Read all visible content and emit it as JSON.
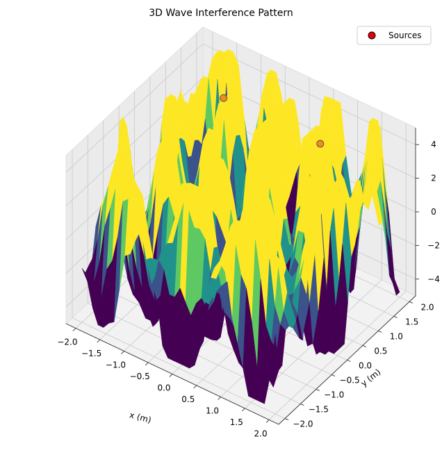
{
  "chart_data": {
    "type": "surface3d",
    "title": "3D Wave Interference Pattern",
    "xlabel": "x (m)",
    "ylabel": "y (m)",
    "zlabel": "",
    "xlim": [
      -2.2,
      2.2
    ],
    "ylim": [
      -2.2,
      2.2
    ],
    "zlim": [
      -5,
      5
    ],
    "x_ticks": [
      -2.0,
      -1.5,
      -1.0,
      -0.5,
      0.0,
      0.5,
      1.0,
      1.5,
      2.0
    ],
    "y_ticks": [
      -2.0,
      -1.5,
      -1.0,
      -0.5,
      0.0,
      0.5,
      1.0,
      1.5,
      2.0
    ],
    "z_ticks": [
      -4,
      -2,
      0,
      2,
      4
    ],
    "x_tick_labels": [
      "−2.0",
      "−1.5",
      "−1.0",
      "−0.5",
      "0.0",
      "0.5",
      "1.0",
      "1.5",
      "2.0"
    ],
    "y_tick_labels": [
      "−2.0",
      "−1.5",
      "−1.0",
      "−0.5",
      "0.0",
      "0.5",
      "1.0",
      "1.5",
      "2.0"
    ],
    "z_tick_labels": [
      "−4",
      "−2",
      "0",
      "2",
      "4"
    ],
    "colormap": [
      "#440154",
      "#3b528b",
      "#21918c",
      "#5ec962",
      "#fde725"
    ],
    "grid": true,
    "legend": {
      "position": "top-right",
      "entries": [
        {
          "label": "Sources",
          "color": "#e8000b"
        }
      ]
    },
    "sources": [
      {
        "x": -1.0,
        "y": 1.0,
        "z": 4.5
      },
      {
        "x": 1.0,
        "y": 1.0,
        "z": 4.5
      }
    ]
  }
}
